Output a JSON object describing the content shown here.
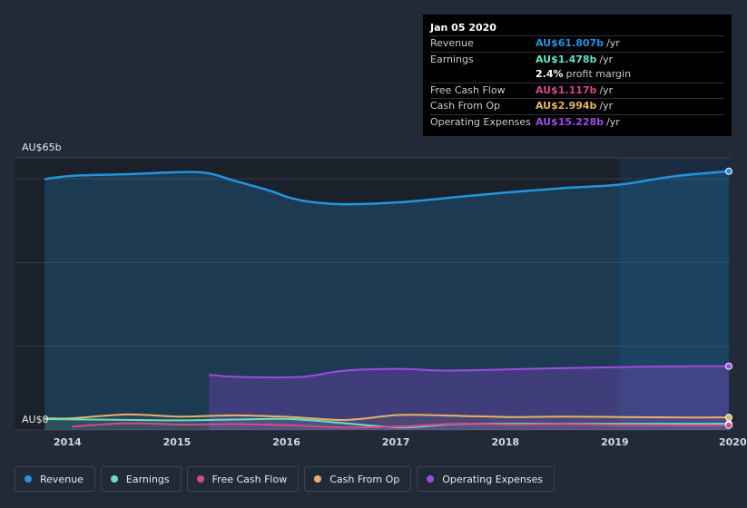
{
  "chart_data": {
    "type": "area",
    "y_axis_top_label": "AU$65b",
    "y_axis_bottom_label": "AU$0",
    "ylim": [
      0,
      65
    ],
    "xlim": [
      2013.74,
      2020.0
    ],
    "x_ticks": [
      {
        "value": 2014,
        "label": "2014"
      },
      {
        "value": 2015,
        "label": "2015"
      },
      {
        "value": 2016,
        "label": "2016"
      },
      {
        "value": 2017,
        "label": "2017"
      },
      {
        "value": 2018,
        "label": "2018"
      },
      {
        "value": 2019,
        "label": "2019"
      },
      {
        "value": 2020,
        "label": "2020"
      }
    ],
    "series": [
      {
        "name": "Revenue",
        "color": "#2394df",
        "fill": true,
        "values": [
          [
            2013.75,
            59.9
          ],
          [
            2014.0,
            60.7
          ],
          [
            2014.5,
            61.1
          ],
          [
            2015.0,
            61.6
          ],
          [
            2015.25,
            61.3
          ],
          [
            2015.5,
            59.4
          ],
          [
            2015.8,
            57.2
          ],
          [
            2016.0,
            55.4
          ],
          [
            2016.2,
            54.4
          ],
          [
            2016.5,
            53.9
          ],
          [
            2017.0,
            54.4
          ],
          [
            2017.5,
            55.6
          ],
          [
            2018.0,
            56.8
          ],
          [
            2018.5,
            57.8
          ],
          [
            2019.0,
            58.6
          ],
          [
            2019.5,
            60.6
          ],
          [
            2020.0,
            61.8
          ]
        ]
      },
      {
        "name": "Earnings",
        "color": "#5fe3c6",
        "fill": false,
        "values": [
          [
            2013.75,
            2.6
          ],
          [
            2014.5,
            2.4
          ],
          [
            2015.0,
            2.3
          ],
          [
            2015.5,
            2.5
          ],
          [
            2016.0,
            2.6
          ],
          [
            2016.5,
            1.6
          ],
          [
            2017.0,
            0.6
          ],
          [
            2017.5,
            1.4
          ],
          [
            2018.0,
            1.5
          ],
          [
            2018.5,
            1.5
          ],
          [
            2019.0,
            1.5
          ],
          [
            2019.5,
            1.48
          ],
          [
            2020.0,
            1.478
          ]
        ]
      },
      {
        "name": "Free Cash Flow",
        "color": "#d4498a",
        "fill": false,
        "values": [
          [
            2014.0,
            0.8
          ],
          [
            2014.5,
            1.6
          ],
          [
            2015.0,
            1.3
          ],
          [
            2015.5,
            1.4
          ],
          [
            2016.0,
            1.1
          ],
          [
            2016.5,
            0.6
          ],
          [
            2017.0,
            0.8
          ],
          [
            2017.5,
            1.5
          ],
          [
            2018.0,
            1.3
          ],
          [
            2018.5,
            1.4
          ],
          [
            2019.0,
            1.2
          ],
          [
            2019.5,
            1.15
          ],
          [
            2020.0,
            1.117
          ]
        ]
      },
      {
        "name": "Cash From Op",
        "color": "#e8b264",
        "fill": false,
        "values": [
          [
            2013.75,
            2.8
          ],
          [
            2014.0,
            2.8
          ],
          [
            2014.5,
            3.7
          ],
          [
            2015.0,
            3.2
          ],
          [
            2015.5,
            3.5
          ],
          [
            2016.0,
            3.1
          ],
          [
            2016.5,
            2.4
          ],
          [
            2017.0,
            3.6
          ],
          [
            2017.5,
            3.4
          ],
          [
            2018.0,
            3.1
          ],
          [
            2018.5,
            3.2
          ],
          [
            2019.0,
            3.1
          ],
          [
            2019.5,
            3.0
          ],
          [
            2020.0,
            2.994
          ]
        ]
      },
      {
        "name": "Operating Expenses",
        "color": "#9d4ce3",
        "fill": true,
        "values": [
          [
            2015.25,
            13.2
          ],
          [
            2015.5,
            12.7
          ],
          [
            2016.0,
            12.6
          ],
          [
            2016.2,
            13.0
          ],
          [
            2016.5,
            14.2
          ],
          [
            2017.0,
            14.6
          ],
          [
            2017.4,
            14.2
          ],
          [
            2018.0,
            14.5
          ],
          [
            2018.5,
            14.8
          ],
          [
            2019.0,
            15.0
          ],
          [
            2019.5,
            15.2
          ],
          [
            2020.0,
            15.228
          ]
        ]
      }
    ],
    "highlight_start": 2019.0
  },
  "tooltip": {
    "date": "Jan 05 2020",
    "rows": [
      {
        "label": "Revenue",
        "value": "AU$61.807b",
        "unit": "/yr",
        "color": "#2394df"
      },
      {
        "label": "Earnings",
        "value": "AU$1.478b",
        "unit": "/yr",
        "color": "#5fe3c6"
      },
      {
        "label": "",
        "value": "2.4%",
        "unit": "profit margin",
        "color": "#ffffff"
      },
      {
        "label": "Free Cash Flow",
        "value": "AU$1.117b",
        "unit": "/yr",
        "color": "#d4498a"
      },
      {
        "label": "Cash From Op",
        "value": "AU$2.994b",
        "unit": "/yr",
        "color": "#e8b264"
      },
      {
        "label": "Operating Expenses",
        "value": "AU$15.228b",
        "unit": "/yr",
        "color": "#9d4ce3"
      }
    ]
  },
  "legend": [
    {
      "label": "Revenue",
      "color": "#2394df"
    },
    {
      "label": "Earnings",
      "color": "#5fe3c6"
    },
    {
      "label": "Free Cash Flow",
      "color": "#d4498a"
    },
    {
      "label": "Cash From Op",
      "color": "#e8b264"
    },
    {
      "label": "Operating Expenses",
      "color": "#9d4ce3"
    }
  ]
}
